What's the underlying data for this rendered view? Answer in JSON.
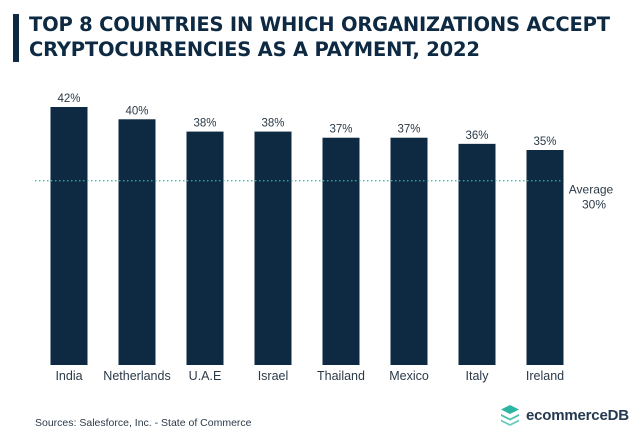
{
  "header": {
    "title_line1": "TOP 8 COUNTRIES IN WHICH ORGANIZATIONS ACCEPT",
    "title_line2": "CRYPTOCURRENCIES AS A PAYMENT, 2022"
  },
  "chart_data": {
    "type": "bar",
    "title": "TOP 8 COUNTRIES IN WHICH ORGANIZATIONS ACCEPT CRYPTOCURRENCIES AS A PAYMENT, 2022",
    "categories": [
      "India",
      "Netherlands",
      "U.A.E",
      "Israel",
      "Thailand",
      "Mexico",
      "Italy",
      "Ireland"
    ],
    "values": [
      42,
      40,
      38,
      38,
      37,
      37,
      36,
      35
    ],
    "value_labels": [
      "42%",
      "40%",
      "38%",
      "38%",
      "37%",
      "37%",
      "36%",
      "35%"
    ],
    "ylim": [
      0,
      42
    ],
    "xlabel": "",
    "ylabel": "",
    "reference_line": {
      "value": 30,
      "label_line1": "Average",
      "label_line2": "30%",
      "style": "dotted"
    },
    "bar_color": "#0e2a43",
    "reference_color": "#2cb5a0"
  },
  "footer": {
    "source": "Sources:  Salesforce, Inc. - State of Commerce",
    "brand": "ecommerceDB"
  },
  "colors": {
    "bar": "#0e2a43",
    "accent": "#2cb5a0",
    "text": "#2b3a48"
  },
  "icons": {
    "brand_logo": "stacked-layers-icon"
  }
}
